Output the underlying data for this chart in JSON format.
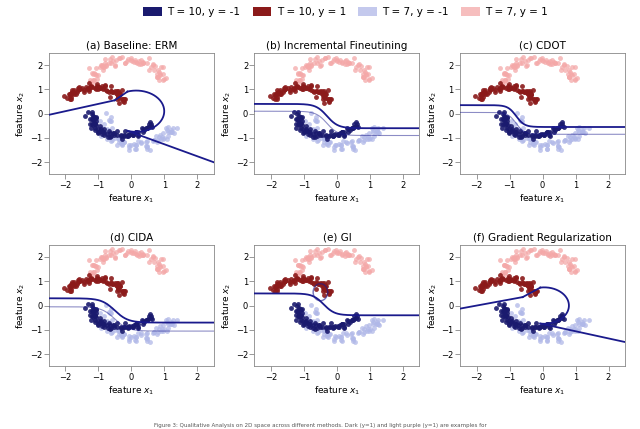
{
  "colors": {
    "t10_neg": "#1a1a6e",
    "t10_pos": "#8b1a1a",
    "t7_neg": "#b0b8e8",
    "t7_pos": "#f4a8a8"
  },
  "subplots": [
    {
      "title": "(a) Baseline: ERM",
      "decision_shape": "C_shape"
    },
    {
      "title": "(b) Incremental Fineutining",
      "decision_shape": "S_curve"
    },
    {
      "title": "(c) CDOT",
      "decision_shape": "step_curve"
    },
    {
      "title": "(d) CIDA",
      "decision_shape": "cida_curve"
    },
    {
      "title": "(e) GI",
      "decision_shape": "gi_wave"
    },
    {
      "title": "(f) Gradient Regularization",
      "decision_shape": "grad_reg"
    }
  ],
  "xlim": [
    -2.5,
    2.5
  ],
  "ylim": [
    -2.5,
    2.5
  ],
  "xticks": [
    -2,
    -1,
    0,
    1,
    2
  ],
  "yticks": [
    -2,
    -1,
    0,
    1,
    2
  ],
  "xlabel": "feature $x_1$",
  "ylabel": "feature $x_2$",
  "decision_color": "#1a1a8c",
  "seed": 42
}
